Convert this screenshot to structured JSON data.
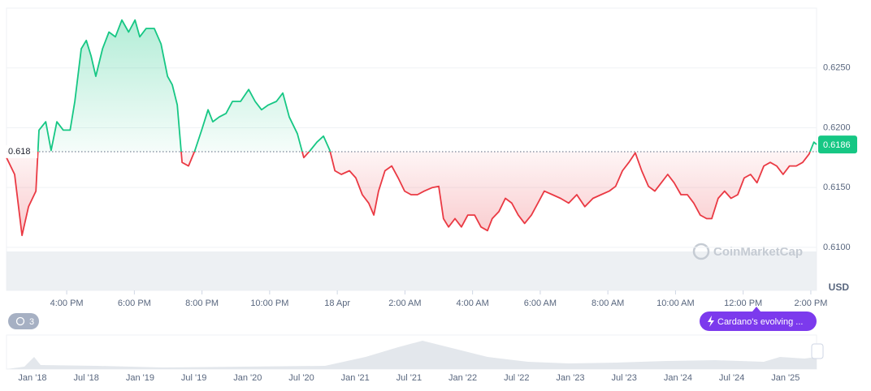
{
  "chart_data": {
    "type": "line",
    "x": [
      14.22,
      14.46,
      14.68,
      14.87,
      15.09,
      15.18,
      15.38,
      15.54,
      15.71,
      15.9,
      16.1,
      16.24,
      16.43,
      16.58,
      16.72,
      16.86,
      17.06,
      17.25,
      17.44,
      17.63,
      17.83,
      18.02,
      18.16,
      18.35,
      18.59,
      18.79,
      18.98,
      19.12,
      19.27,
      19.41,
      19.6,
      19.79,
      19.99,
      20.18,
      20.32,
      20.51,
      20.71,
      20.9,
      21.14,
      21.38,
      21.57,
      21.76,
      21.96,
      22.2,
      22.39,
      22.58,
      22.82,
      23.01,
      23.2,
      23.4,
      23.59,
      23.78,
      23.93,
      24.12,
      24.36,
      24.55,
      24.74,
      24.93,
      25.08,
      25.22,
      25.41,
      25.61,
      25.8,
      25.99,
      26.18,
      26.37,
      26.57,
      26.81,
      27.0,
      27.14,
      27.29,
      27.48,
      27.67,
      27.86,
      28.06,
      28.25,
      28.44,
      28.58,
      28.78,
      28.97,
      29.16,
      29.35,
      29.54,
      29.74,
      29.93,
      30.12,
      30.36,
      30.6,
      30.84,
      31.08,
      31.32,
      31.56,
      31.8,
      32.04,
      32.23,
      32.43,
      32.62,
      32.81,
      33.0,
      33.2,
      33.39,
      33.58,
      33.77,
      33.96,
      34.16,
      34.35,
      34.54,
      34.73,
      34.92,
      35.07,
      35.26,
      35.45,
      35.64,
      35.84,
      36.03,
      36.22,
      36.41,
      36.61,
      36.8,
      36.99,
      37.18,
      37.37,
      37.57,
      37.76,
      37.95,
      38.09,
      38.17
    ],
    "values": [
      0.6175,
      0.6161,
      0.611,
      0.6134,
      0.6147,
      0.6198,
      0.6205,
      0.6181,
      0.6205,
      0.6198,
      0.6198,
      0.6222,
      0.6266,
      0.6273,
      0.626,
      0.6243,
      0.6266,
      0.628,
      0.6276,
      0.629,
      0.628,
      0.629,
      0.6276,
      0.6283,
      0.6283,
      0.627,
      0.6243,
      0.6236,
      0.6219,
      0.6171,
      0.6168,
      0.6181,
      0.6198,
      0.6215,
      0.6205,
      0.6209,
      0.6212,
      0.6222,
      0.6222,
      0.6232,
      0.6222,
      0.6215,
      0.6219,
      0.6222,
      0.6229,
      0.6209,
      0.6195,
      0.6175,
      0.6181,
      0.6188,
      0.6193,
      0.6181,
      0.6164,
      0.6161,
      0.6164,
      0.6158,
      0.6144,
      0.6137,
      0.6127,
      0.6147,
      0.6164,
      0.6168,
      0.6158,
      0.6147,
      0.6144,
      0.6144,
      0.6147,
      0.615,
      0.6151,
      0.6124,
      0.6117,
      0.6124,
      0.6117,
      0.6127,
      0.6127,
      0.6117,
      0.6114,
      0.6124,
      0.613,
      0.6141,
      0.6137,
      0.6127,
      0.612,
      0.6127,
      0.6137,
      0.6147,
      0.6144,
      0.6141,
      0.6137,
      0.6144,
      0.6134,
      0.6141,
      0.6144,
      0.6147,
      0.6151,
      0.6164,
      0.6171,
      0.6179,
      0.6164,
      0.6151,
      0.6147,
      0.6154,
      0.6161,
      0.6154,
      0.6144,
      0.6144,
      0.6137,
      0.6127,
      0.6124,
      0.6124,
      0.6141,
      0.6147,
      0.6141,
      0.6144,
      0.6158,
      0.6161,
      0.6154,
      0.6168,
      0.6171,
      0.6168,
      0.6161,
      0.6168,
      0.6168,
      0.6171,
      0.6178,
      0.6188,
      0.6186
    ],
    "color_up": "#16c784",
    "color_down": "#ea3943",
    "xlim": [
      14.22,
      38.17
    ],
    "xticks": [
      {
        "value": 16,
        "label": "4:00 PM"
      },
      {
        "value": 18,
        "label": "6:00 PM"
      },
      {
        "value": 20,
        "label": "8:00 PM"
      },
      {
        "value": 22,
        "label": "10:00 PM"
      },
      {
        "value": 24,
        "label": "18 Apr"
      },
      {
        "value": 26,
        "label": "2:00 AM"
      },
      {
        "value": 28,
        "label": "4:00 AM"
      },
      {
        "value": 30,
        "label": "6:00 AM"
      },
      {
        "value": 32,
        "label": "8:00 AM"
      },
      {
        "value": 34,
        "label": "10:00 AM"
      },
      {
        "value": 36,
        "label": "12:00 PM"
      },
      {
        "value": 38,
        "label": "2:00 PM"
      }
    ],
    "ylim": [
      0.6064,
      0.63
    ],
    "yticks": [
      {
        "value": 0.61,
        "label": "0.6100"
      },
      {
        "value": 0.615,
        "label": "0.6150"
      },
      {
        "value": 0.62,
        "label": "0.6200"
      },
      {
        "value": 0.625,
        "label": "0.6250"
      }
    ],
    "grid": true,
    "baseline": {
      "value": 0.618,
      "label": "0.618"
    },
    "current_price": {
      "value": 0.6186,
      "label": "0.6186"
    },
    "unit": "USD",
    "watermark": "CoinMarketCap",
    "badge": "3",
    "news_pill": "Cardano's evolving ...",
    "navigator_labels": [
      "Jan '18",
      "Jul '18",
      "Jan '19",
      "Jul '19",
      "Jan '20",
      "Jul '20",
      "Jan '21",
      "Jul '21",
      "Jan '22",
      "Jul '22",
      "Jan '23",
      "Jul '23",
      "Jan '24",
      "Jul '24",
      "Jan '25"
    ]
  }
}
